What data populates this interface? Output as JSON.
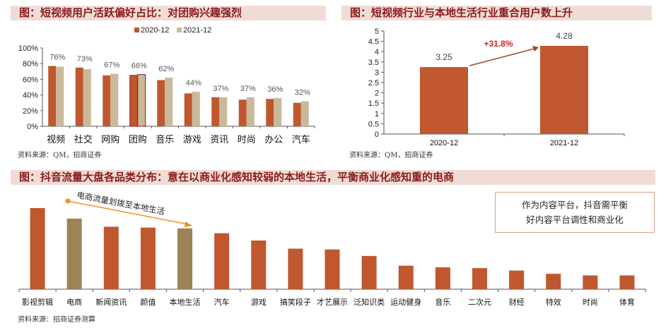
{
  "chart_data": [
    {
      "type": "bar",
      "title": "图：短视频用户活跃偏好占比：对团购兴趣强烈",
      "categories": [
        "视频",
        "社交",
        "网购",
        "团购",
        "音乐",
        "游戏",
        "资讯",
        "时尚",
        "办公",
        "汽车"
      ],
      "series": [
        {
          "name": "2020-12",
          "color": "#c0572e",
          "values": [
            77,
            75,
            65,
            65,
            59,
            42,
            37,
            34,
            35,
            30
          ]
        },
        {
          "name": "2021-12",
          "color": "#c9b99a",
          "values": [
            76,
            73,
            67,
            66,
            62,
            44,
            37,
            37,
            36,
            32
          ]
        }
      ],
      "data_labels": [
        "76%",
        "73%",
        "67%",
        "66%",
        "62%",
        "44%",
        "37%",
        "37%",
        "36%",
        "32%"
      ],
      "yticks": [
        "0%",
        "20%",
        "40%",
        "60%",
        "80%",
        "100%"
      ],
      "ylim": [
        0,
        100
      ],
      "highlight": "团购",
      "legend": "top",
      "source": "资料来源：QM，招商证券"
    },
    {
      "type": "bar",
      "title": "图：短视频行业与本地生活行业重合用户数上升",
      "categories": [
        "2020-12",
        "2021-12"
      ],
      "values": [
        3.25,
        4.28
      ],
      "data_labels": [
        "3.25",
        "4.28"
      ],
      "color": "#c0572e",
      "annotation": "+31.8%",
      "yticks": [
        "0",
        "0.5",
        "1",
        "1.5",
        "2",
        "2.5",
        "3",
        "3.5",
        "4",
        "4.5",
        "5"
      ],
      "ylim": [
        0,
        5
      ],
      "source": "资料来源：QM，招商证券"
    },
    {
      "type": "bar",
      "title": "图：抖音流量大盘各品类分布：意在以商业化感知较弱的本地生活，平衡商业化感知重的电商",
      "categories": [
        "影视剪辑",
        "电商",
        "新闻资讯",
        "颜值",
        "本地生活",
        "汽车",
        "游戏",
        "搞笑段子",
        "才艺展示",
        "泛知识类",
        "运动健身",
        "音乐",
        "二次元",
        "财经",
        "特效",
        "时尚",
        "体育"
      ],
      "values": [
        100,
        87,
        77,
        76,
        75,
        69,
        60,
        50,
        49,
        41,
        29,
        27,
        26,
        23,
        19,
        17,
        17
      ],
      "highlighted": [
        "电商",
        "本地生活"
      ],
      "color": "#c0572e",
      "highlight_color": "#9c8457",
      "arrow_annotation": "电商流量划拨至本地生活",
      "note": [
        "作为内容平台，抖音需平衡",
        "好内容平台调性和商业化"
      ],
      "source": "资料来源：招商证券测算"
    }
  ]
}
